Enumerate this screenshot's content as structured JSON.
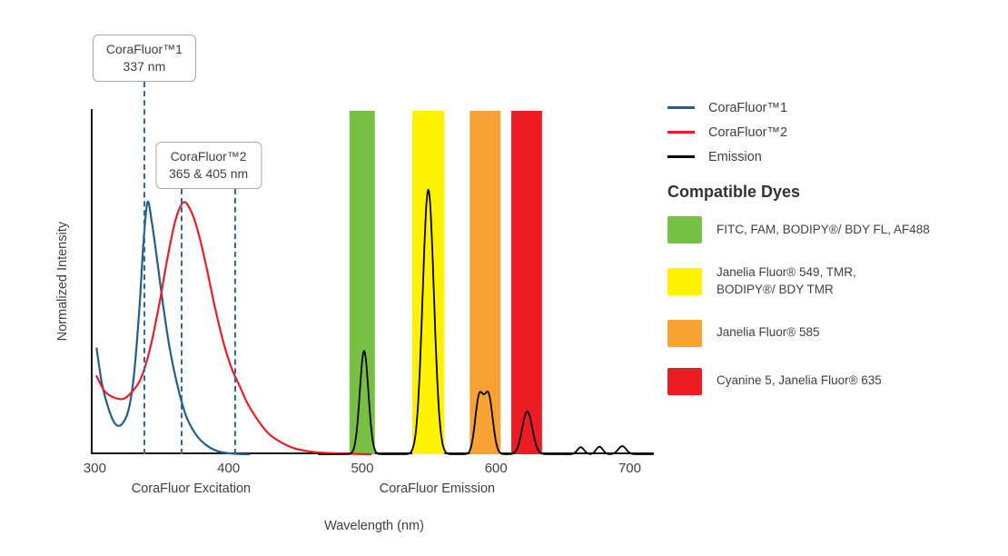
{
  "legend": {
    "items": [
      {
        "label": "CoraFluor™1",
        "color": "#225e8d"
      },
      {
        "label": "CoraFluor™2",
        "color": "#ec1c24"
      },
      {
        "label": "Emission",
        "color": "#000000"
      }
    ]
  },
  "dyes": {
    "heading": "Compatible Dyes",
    "items": [
      {
        "color": "#76c043",
        "label": "FITC, FAM, BODIPY®/ BDY FL, AF488"
      },
      {
        "color": "#fff200",
        "label": "Janelia Fluor® 549, TMR,\nBODIPY®/ BDY TMR"
      },
      {
        "color": "#f7a233",
        "label": "Janelia Fluor® 585"
      },
      {
        "color": "#ec1c24",
        "label": "Cyanine 5, Janelia Fluor® 635"
      }
    ]
  },
  "chart_data": {
    "type": "line",
    "title": "",
    "xlabel": "Wavelength (nm)",
    "ylabel": "Normalized Intensity",
    "xlim": [
      297,
      718
    ],
    "ylim": [
      0,
      1.37
    ],
    "x_ticks": [
      300,
      400,
      500,
      600,
      700
    ],
    "grid": false,
    "legend_position": "top-right",
    "section_labels": [
      {
        "label": "CoraFluor Excitation",
        "center_nm": 372
      },
      {
        "label": "CoraFluor Emission",
        "center_nm": 556
      }
    ],
    "marker_line_color": "#2d6a9f",
    "annotations": [
      {
        "title": "CoraFluor™1",
        "subtitle": "337 nm",
        "lines_nm": [
          337
        ]
      },
      {
        "title": "CoraFluor™2",
        "subtitle": "365 & 405 nm",
        "lines_nm": [
          365,
          405
        ]
      }
    ],
    "bands": [
      {
        "name": "green",
        "color": "#76c043",
        "x0": 489,
        "x1": 508,
        "dyes": "FITC, FAM, BODIPY®/ BDY FL, AF488"
      },
      {
        "name": "yellow",
        "color": "#fff200",
        "x0": 536,
        "x1": 560,
        "dyes": "Janelia Fluor® 549, TMR, BODIPY®/ BDY TMR"
      },
      {
        "name": "orange",
        "color": "#f7a233",
        "x0": 579,
        "x1": 602,
        "dyes": "Janelia Fluor® 585"
      },
      {
        "name": "red",
        "color": "#ec1c24",
        "x0": 610,
        "x1": 633,
        "dyes": "Cyanine 5, Janelia Fluor® 635"
      }
    ],
    "series": [
      {
        "name": "CoraFluor™1 excitation",
        "color": "#225e8d",
        "points": [
          [
            300,
            0.42
          ],
          [
            304,
            0.28
          ],
          [
            309,
            0.18
          ],
          [
            314,
            0.12
          ],
          [
            319,
            0.12
          ],
          [
            324,
            0.18
          ],
          [
            328,
            0.32
          ],
          [
            332,
            0.58
          ],
          [
            335,
            0.84
          ],
          [
            338,
            1.0
          ],
          [
            341,
            0.93
          ],
          [
            345,
            0.78
          ],
          [
            350,
            0.58
          ],
          [
            355,
            0.41
          ],
          [
            361,
            0.26
          ],
          [
            367,
            0.15
          ],
          [
            374,
            0.08
          ],
          [
            381,
            0.04
          ],
          [
            389,
            0.015
          ],
          [
            397,
            0.005
          ],
          [
            406,
            0.001
          ],
          [
            414,
            0
          ]
        ]
      },
      {
        "name": "CoraFluor™2 excitation",
        "color": "#ec1c24",
        "points": [
          [
            300,
            0.31
          ],
          [
            306,
            0.25
          ],
          [
            313,
            0.225
          ],
          [
            320,
            0.22
          ],
          [
            326,
            0.245
          ],
          [
            333,
            0.3
          ],
          [
            340,
            0.42
          ],
          [
            347,
            0.6
          ],
          [
            353,
            0.78
          ],
          [
            359,
            0.93
          ],
          [
            365,
            1.0
          ],
          [
            371,
            0.96
          ],
          [
            377,
            0.86
          ],
          [
            383,
            0.72
          ],
          [
            389,
            0.57
          ],
          [
            395,
            0.44
          ],
          [
            401,
            0.34
          ],
          [
            407,
            0.27
          ],
          [
            413,
            0.2
          ],
          [
            420,
            0.14
          ],
          [
            428,
            0.085
          ],
          [
            437,
            0.05
          ],
          [
            447,
            0.025
          ],
          [
            458,
            0.012
          ],
          [
            472,
            0.005
          ],
          [
            488,
            0.002
          ],
          [
            505,
            0
          ]
        ]
      },
      {
        "name": "Emission",
        "color": "#000000",
        "x_range": [
          466,
          716
        ],
        "peaks": [
          {
            "center": 500,
            "height": 0.41,
            "sigma": 3.2
          },
          {
            "center": 548,
            "height": 1.05,
            "sigma": 4.2
          },
          {
            "center": 586,
            "height": 0.22,
            "sigma": 3.0
          },
          {
            "center": 593,
            "height": 0.23,
            "sigma": 3.2
          },
          {
            "center": 622,
            "height": 0.17,
            "sigma": 3.8
          },
          {
            "center": 662,
            "height": 0.028,
            "sigma": 2.5
          },
          {
            "center": 676,
            "height": 0.03,
            "sigma": 2.5
          },
          {
            "center": 693,
            "height": 0.032,
            "sigma": 3.0
          }
        ]
      }
    ]
  }
}
